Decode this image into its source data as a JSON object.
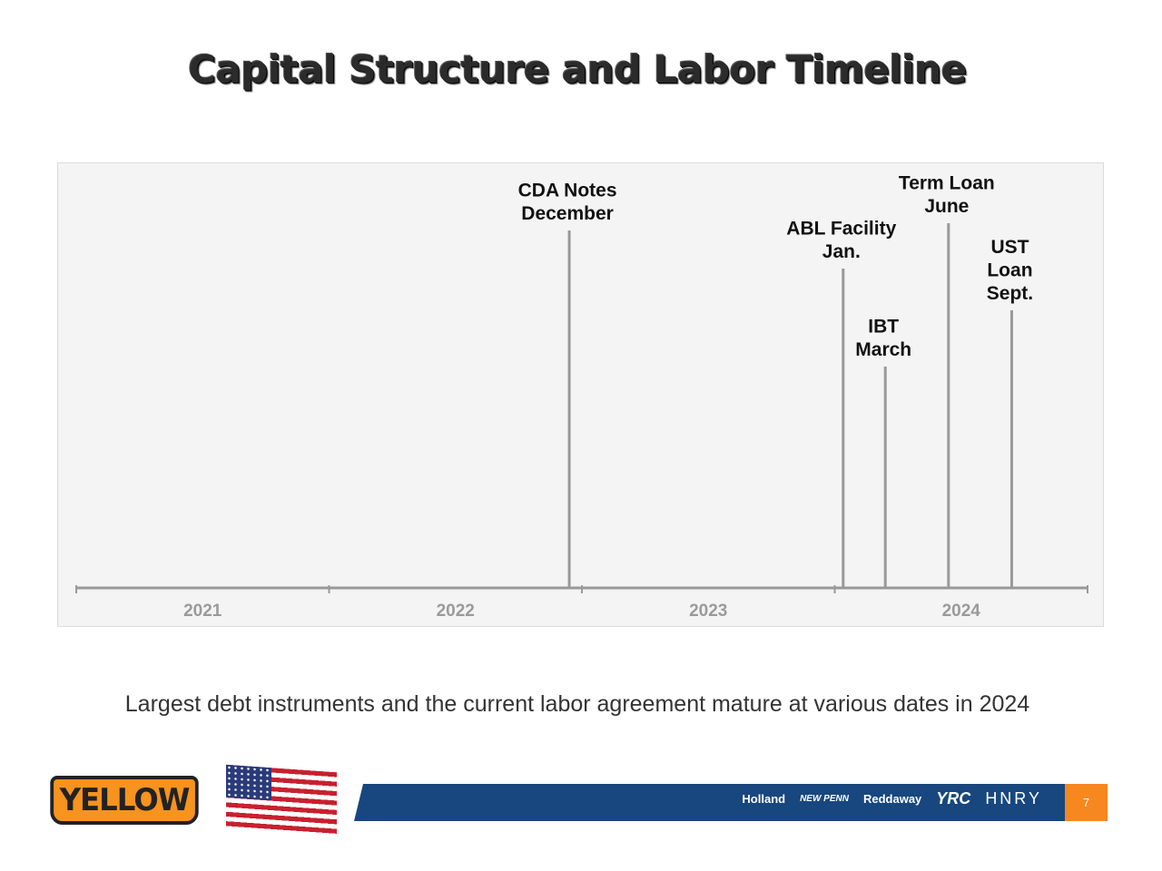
{
  "title": "Capital Structure and Labor Timeline",
  "timeline": {
    "years": [
      "2021",
      "2022",
      "2023",
      "2024"
    ],
    "events": [
      {
        "lines": [
          "CDA Notes",
          "December"
        ],
        "date": "2022-12"
      },
      {
        "lines": [
          "ABL Facility",
          "Jan."
        ],
        "date": "2024-01"
      },
      {
        "lines": [
          "IBT",
          "March"
        ],
        "date": "2024-03"
      },
      {
        "lines": [
          "Term Loan",
          "June"
        ],
        "date": "2024-06"
      },
      {
        "lines": [
          "UST",
          "Loan",
          "Sept."
        ],
        "date": "2024-09"
      }
    ]
  },
  "subtitle": "Largest debt instruments and the current labor agreement mature at various dates in 2024",
  "footer": {
    "logo": "YELLOW",
    "brands": [
      "Holland",
      "NEW PENN",
      "Reddaway",
      "YRC",
      "HNRY"
    ],
    "page_number": "7",
    "colors": {
      "bar": "#17477e",
      "page_box": "#f7871f",
      "logo": "#f7931e"
    }
  }
}
